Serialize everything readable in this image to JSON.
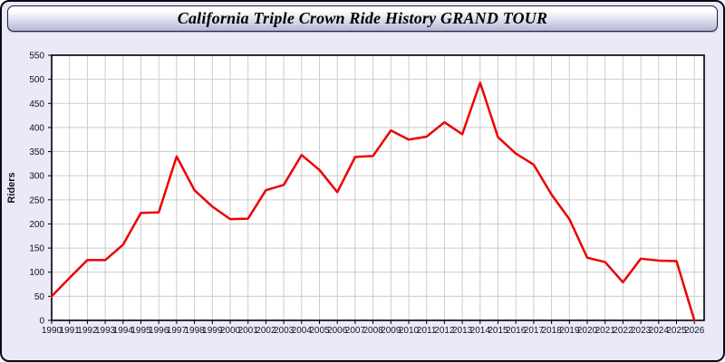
{
  "window": {
    "title": "California Triple Crown Ride History GRAND TOUR"
  },
  "theme": {
    "line_color": "#ee0000",
    "panel_background": "#e9e9f8",
    "plot_background": "#ffffff",
    "grid_color": "#cccccc",
    "axis_color": "#000000",
    "label_color": "#111122",
    "titlebar_gradient_top": "#ffffff",
    "titlebar_gradient_bottom": "#b8b8d8"
  },
  "chart_data": {
    "type": "line",
    "title": "California Triple Crown Ride History GRAND TOUR",
    "xlabel": "",
    "ylabel": "Riders",
    "ylim": [
      0,
      550
    ],
    "ytick_step": 50,
    "grid": true,
    "legend": "none",
    "x": [
      1990,
      1991,
      1992,
      1993,
      1994,
      1995,
      1996,
      1997,
      1998,
      1999,
      2000,
      2001,
      2002,
      2003,
      2004,
      2005,
      2006,
      2007,
      2008,
      2009,
      2010,
      2011,
      2012,
      2013,
      2014,
      2015,
      2016,
      2017,
      2018,
      2019,
      2020,
      2021,
      2022,
      2023,
      2024,
      2025,
      2026
    ],
    "series": [
      {
        "name": "Riders",
        "color": "#ee0000",
        "values": [
          50,
          88,
          125,
          125,
          157,
          223,
          224,
          340,
          270,
          236,
          210,
          211,
          270,
          281,
          343,
          312,
          266,
          339,
          341,
          394,
          375,
          381,
          411,
          386,
          493,
          380,
          346,
          323,
          261,
          210,
          130,
          121,
          79,
          128,
          124,
          123,
          0
        ]
      }
    ]
  }
}
